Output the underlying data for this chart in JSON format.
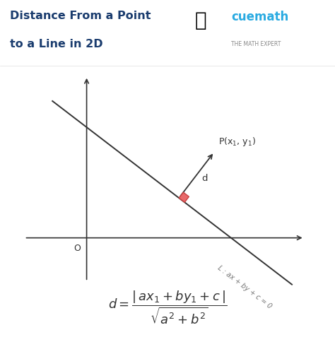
{
  "title_line1": "Distance From a Point",
  "title_line2": "to a Line in 2D",
  "title_color": "#1a3c6e",
  "bg_color": "#ffffff",
  "axis_color": "#333333",
  "line_color": "#333333",
  "perp_line_color": "#333333",
  "square_color": "#e8696a",
  "square_edge_color": "#c84040",
  "origin_label": "O",
  "point_label": "P(x$_1$, y$_1$)",
  "d_label": "d",
  "line_label": "L : ax + by + c = 0",
  "cuemath_text": "cuemath",
  "cuemath_sub": "THE MATH EXPERT",
  "cuemath_color": "#29aae1",
  "cuemath_sub_color": "#888888",
  "figsize": [
    4.74,
    5.01
  ],
  "dpi": 100
}
